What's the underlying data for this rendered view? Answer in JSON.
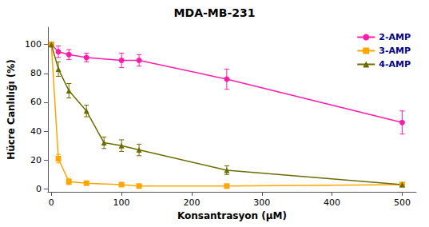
{
  "chart_data": {
    "type": "line",
    "title": "MDA-MB-231",
    "xlabel": "Konsantrasyon (μM)",
    "ylabel": "Hücre Canlılığı (%)",
    "xlim": [
      -5,
      520
    ],
    "ylim": [
      -2,
      112
    ],
    "xticks": [
      0,
      100,
      200,
      300,
      400,
      500
    ],
    "yticks": [
      0,
      20,
      40,
      60,
      80,
      100
    ],
    "grid": false,
    "legend": "upper right",
    "series": [
      {
        "name": "2-AMP",
        "color": "#FF1CA8",
        "marker": "circle",
        "x": [
          0,
          10,
          25,
          50,
          100,
          125,
          250,
          500
        ],
        "values": [
          100,
          95,
          93,
          91,
          89,
          89,
          76,
          46
        ],
        "yerr": [
          1.5,
          4,
          3.5,
          3,
          5,
          4,
          7,
          8
        ]
      },
      {
        "name": "3-AMP",
        "color": "#FFA500",
        "marker": "square",
        "x": [
          0,
          10,
          25,
          50,
          100,
          125,
          250,
          500
        ],
        "values": [
          100,
          21,
          5,
          4,
          3,
          2,
          2,
          3
        ],
        "yerr": [
          1.5,
          3,
          2,
          1,
          0.8,
          0.5,
          0.5,
          0.8
        ]
      },
      {
        "name": "4-AMP",
        "color": "#6B6B00",
        "marker": "triangle",
        "x": [
          0,
          10,
          25,
          50,
          75,
          100,
          125,
          250,
          500
        ],
        "values": [
          100,
          83,
          68,
          54,
          32,
          30,
          27,
          13,
          3
        ],
        "yerr": [
          1.5,
          5,
          5,
          4,
          4,
          4,
          4,
          3,
          1.5
        ]
      }
    ]
  }
}
